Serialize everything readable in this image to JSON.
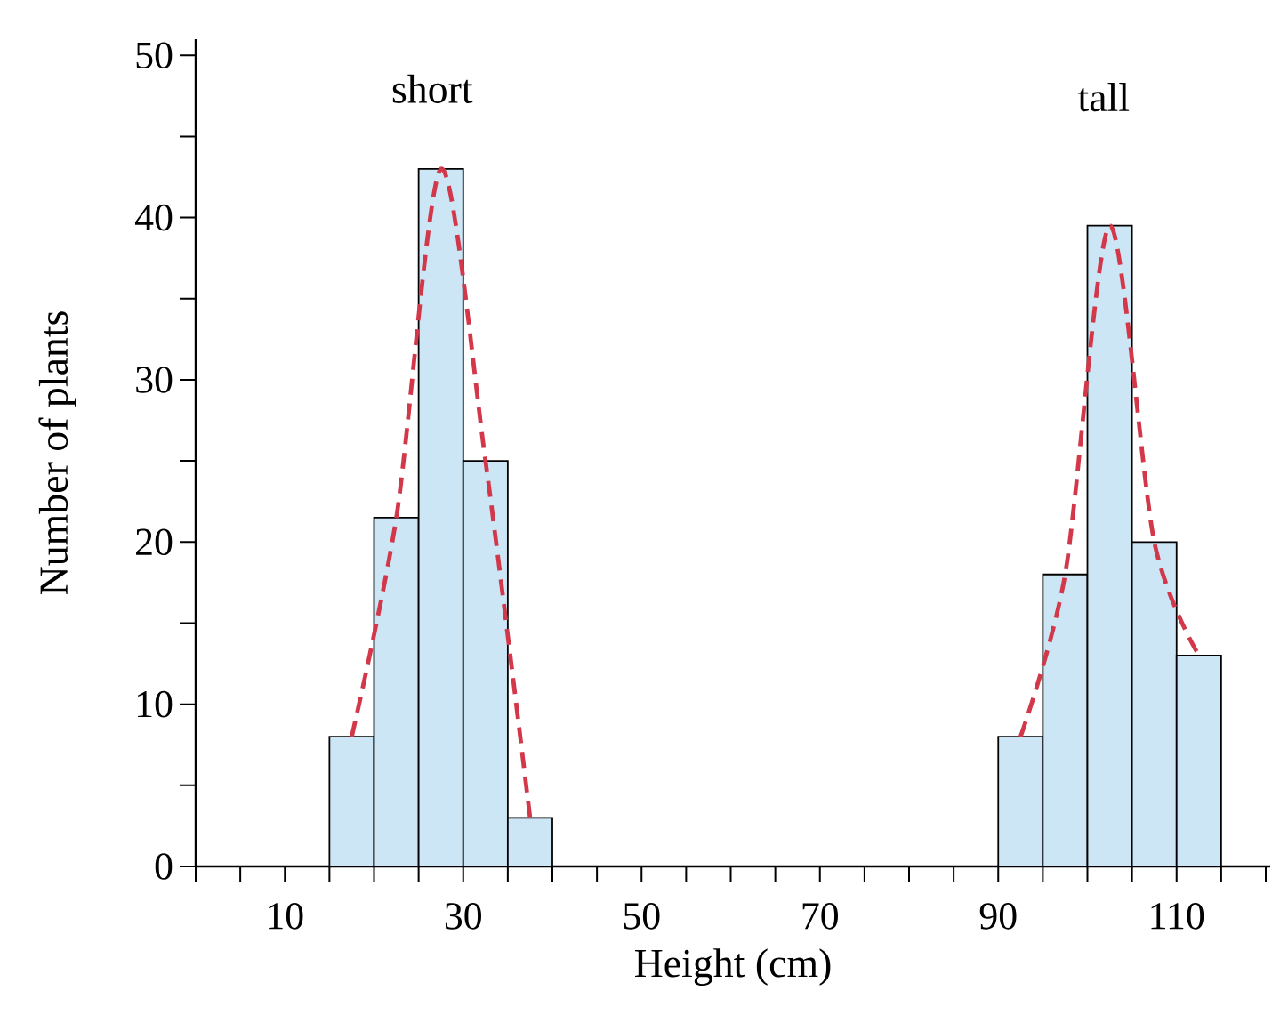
{
  "chart_data": {
    "type": "histogram",
    "xlabel": "Height (cm)",
    "ylabel": "Number of plants",
    "series": [
      {
        "color": "#cce6f6",
        "bins": [
          15,
          20,
          25,
          30,
          35,
          40,
          45,
          50,
          55,
          60,
          65,
          70,
          75,
          80,
          85,
          90,
          95,
          100,
          105,
          110,
          115
        ],
        "values": [
          8,
          21.5,
          43,
          25,
          3,
          null,
          null,
          null,
          null,
          null,
          null,
          null,
          null,
          null,
          null,
          8,
          18,
          39.5,
          20,
          13
        ]
      },
      {
        "type": "line",
        "color": "#d2384a",
        "line_style": "dashed",
        "x": [
          17.5,
          22.5,
          27.5,
          32.5,
          37.5
        ],
        "values": [
          8,
          21.5,
          43,
          25,
          3
        ]
      },
      {
        "type": "line",
        "color": "#d2384a",
        "line_style": "dashed",
        "x": [
          92.5,
          97.5,
          102.5,
          107.5,
          112.5
        ],
        "values": [
          8,
          18,
          39.5,
          20,
          13
        ]
      }
    ],
    "annotations": [
      "short",
      "tall"
    ],
    "xlim": [
      0,
      120.5
    ],
    "ylim": [
      0,
      51
    ],
    "xticks": [
      {
        "value": 0,
        "label": null
      },
      {
        "value": 5,
        "label": null
      },
      10,
      {
        "value": 15,
        "label": null
      },
      {
        "value": 20,
        "label": null
      },
      {
        "value": 25,
        "label": null
      },
      30,
      {
        "value": 35,
        "label": null
      },
      {
        "value": 40,
        "label": null
      },
      {
        "value": 45,
        "label": null
      },
      50,
      {
        "value": 55,
        "label": null
      },
      {
        "value": 60,
        "label": null
      },
      {
        "value": 65,
        "label": null
      },
      70,
      {
        "value": 75,
        "label": null
      },
      {
        "value": 80,
        "label": null
      },
      {
        "value": 85,
        "label": null
      },
      90,
      {
        "value": 95,
        "label": null
      },
      {
        "value": 100,
        "label": null
      },
      {
        "value": 105,
        "label": null
      },
      110,
      {
        "value": 115,
        "label": null
      },
      {
        "value": 120,
        "label": null
      }
    ],
    "yticks": [
      0,
      {
        "value": 5,
        "label": null
      },
      10,
      {
        "value": 15,
        "label": null
      },
      20,
      {
        "value": 25,
        "label": null
      },
      30,
      {
        "value": 35,
        "label": null
      },
      40,
      {
        "value": 45,
        "label": null
      },
      50
    ]
  }
}
